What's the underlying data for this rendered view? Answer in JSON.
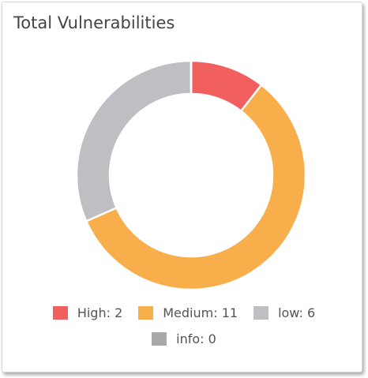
{
  "chart_data": {
    "type": "donut",
    "title": "Total Vulnerabilities",
    "categories": [
      "High: 2",
      "Medium: 11",
      "low: 6",
      "info: 0"
    ],
    "values": [
      2,
      11,
      6,
      0
    ],
    "colors": [
      "#f15f5f",
      "#f7ae4b",
      "#bebec3",
      "#a9a9a9"
    ]
  }
}
